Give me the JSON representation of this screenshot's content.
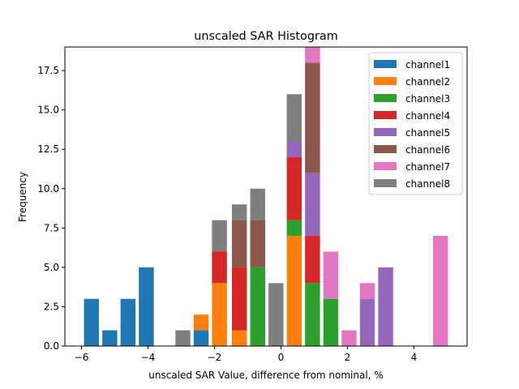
{
  "chart_data": {
    "type": "bar",
    "stacked": true,
    "title": "unscaled SAR Histogram",
    "xlabel": "unscaled SAR Value, difference from nominal, %",
    "ylabel": "Frequency",
    "xlim": [
      -6.5,
      5.6
    ],
    "ylim": [
      0,
      19
    ],
    "xticks": [
      -6,
      -4,
      -2,
      0,
      2,
      4
    ],
    "xtick_labels": [
      "−6",
      "−4",
      "−2",
      "0",
      "2",
      "4"
    ],
    "yticks": [
      0,
      2.5,
      5,
      7.5,
      10,
      12.5,
      15,
      17.5
    ],
    "ytick_labels": [
      "0.0",
      "2.5",
      "5.0",
      "7.5",
      "10.0",
      "12.5",
      "15.0",
      "17.5"
    ],
    "grid": false,
    "legend_position": "top-right",
    "bin_width": 0.45,
    "bin_centers": [
      -5.7,
      -5.15,
      -4.6,
      -4.05,
      -2.95,
      -2.4,
      -1.85,
      -1.25,
      -0.7,
      -0.15,
      0.4,
      0.95,
      1.5,
      2.05,
      2.6,
      3.15,
      4.8
    ],
    "series": [
      {
        "name": "channel1",
        "color": "#1f77b4",
        "values": [
          3,
          1,
          3,
          5,
          0,
          1,
          0,
          0,
          0,
          0,
          0,
          0,
          0,
          0,
          0,
          0,
          0
        ]
      },
      {
        "name": "channel2",
        "color": "#ff7f0e",
        "values": [
          0,
          0,
          0,
          0,
          0,
          1,
          4,
          1,
          0,
          0,
          7,
          0,
          0,
          0,
          0,
          0,
          0
        ]
      },
      {
        "name": "channel3",
        "color": "#2ca02c",
        "values": [
          0,
          0,
          0,
          0,
          0,
          0,
          0,
          0,
          5,
          0,
          1,
          4,
          3,
          0,
          0,
          0,
          0
        ]
      },
      {
        "name": "channel4",
        "color": "#d62728",
        "values": [
          0,
          0,
          0,
          0,
          0,
          0,
          2,
          4,
          0,
          0,
          4,
          3,
          0,
          0,
          0,
          0,
          0
        ]
      },
      {
        "name": "channel5",
        "color": "#9467bd",
        "values": [
          0,
          0,
          0,
          0,
          0,
          0,
          0,
          0,
          0,
          0,
          1,
          4,
          0,
          0,
          3,
          5,
          0
        ]
      },
      {
        "name": "channel6",
        "color": "#8c564b",
        "values": [
          0,
          0,
          0,
          0,
          0,
          0,
          0,
          3,
          3,
          0,
          0,
          7,
          0,
          0,
          0,
          0,
          0
        ]
      },
      {
        "name": "channel7",
        "color": "#e377c2",
        "values": [
          0,
          0,
          0,
          0,
          0,
          0,
          0,
          0,
          0,
          0,
          0,
          2,
          3,
          1,
          1,
          0,
          7
        ]
      },
      {
        "name": "channel8",
        "color": "#7f7f7f",
        "values": [
          0,
          0,
          0,
          0,
          1,
          0,
          2,
          1,
          2,
          4,
          3,
          0,
          0,
          0,
          0,
          0,
          0
        ]
      }
    ]
  }
}
